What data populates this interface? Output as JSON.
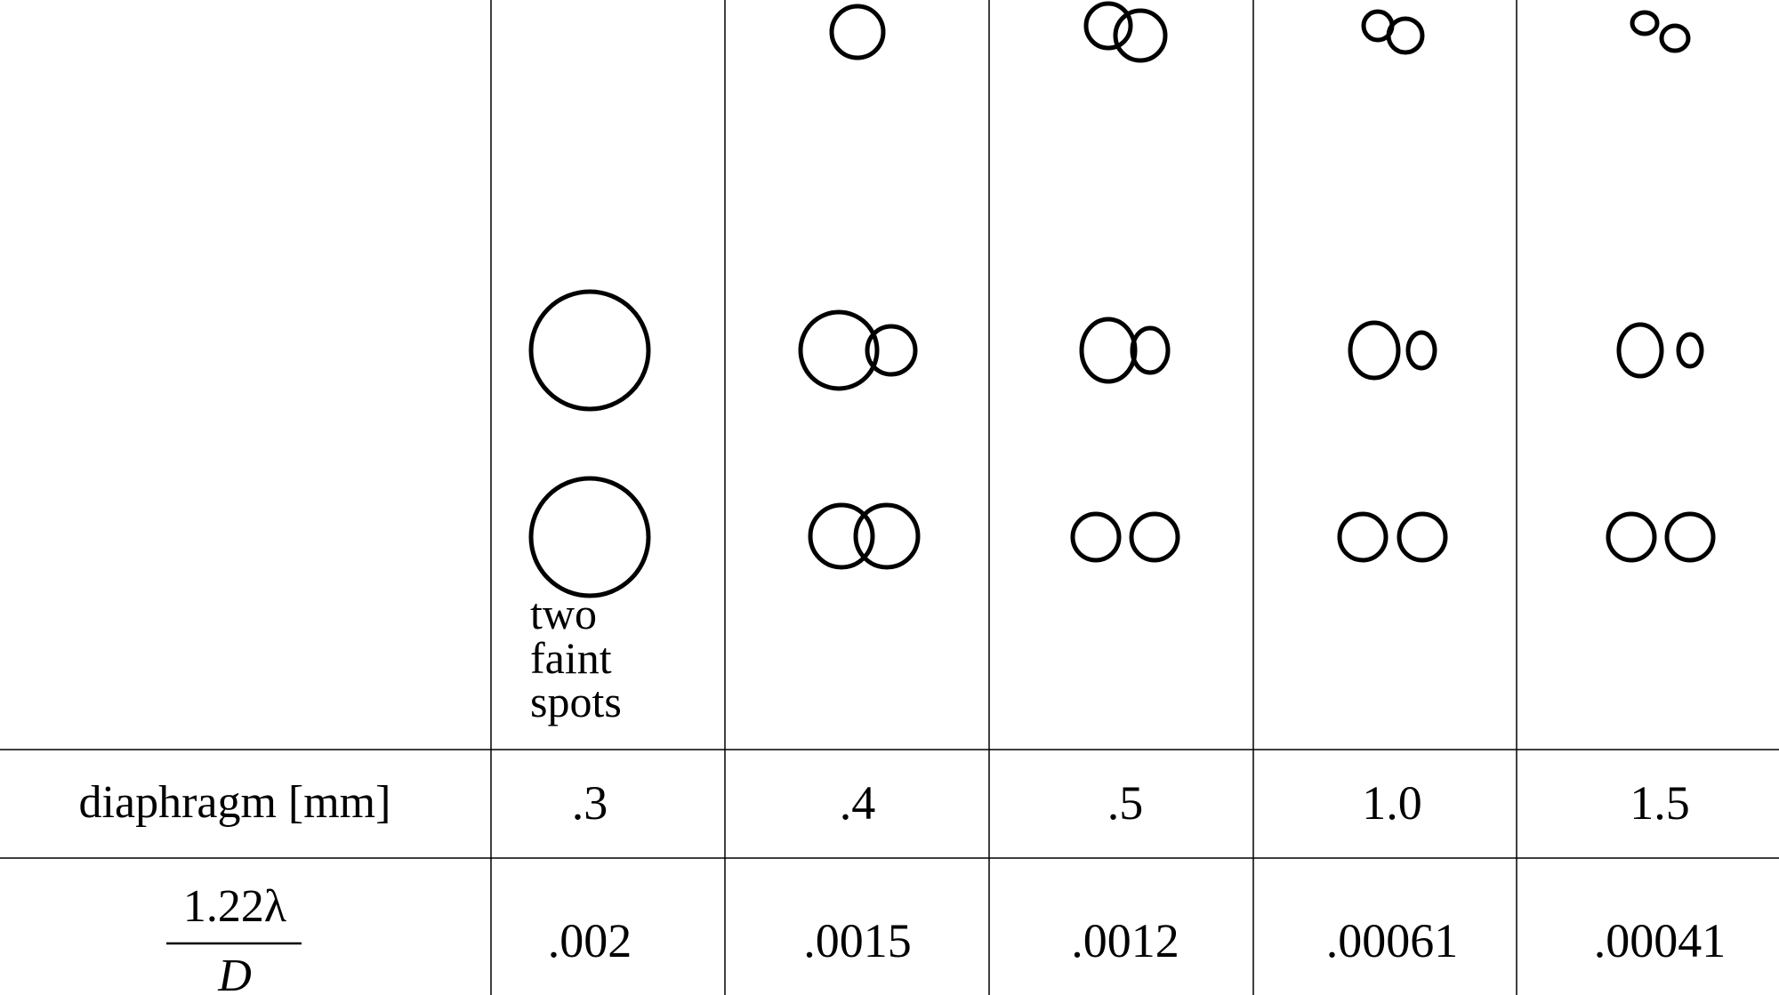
{
  "note": [
    "two",
    "faint",
    "spots"
  ],
  "row_labels": {
    "diaphragm": "diaphragm [mm]",
    "ratio_numerator": "1.22λ",
    "ratio_denominator": "D"
  },
  "columns": [
    {
      "diaphragm": ".3",
      "ratio": ".002"
    },
    {
      "diaphragm": ".4",
      "ratio": ".0015"
    },
    {
      "diaphragm": ".5",
      "ratio": ".0012"
    },
    {
      "diaphragm": "1.0",
      "ratio": ".00061"
    },
    {
      "diaphragm": "1.5",
      "ratio": ".00041"
    }
  ]
}
